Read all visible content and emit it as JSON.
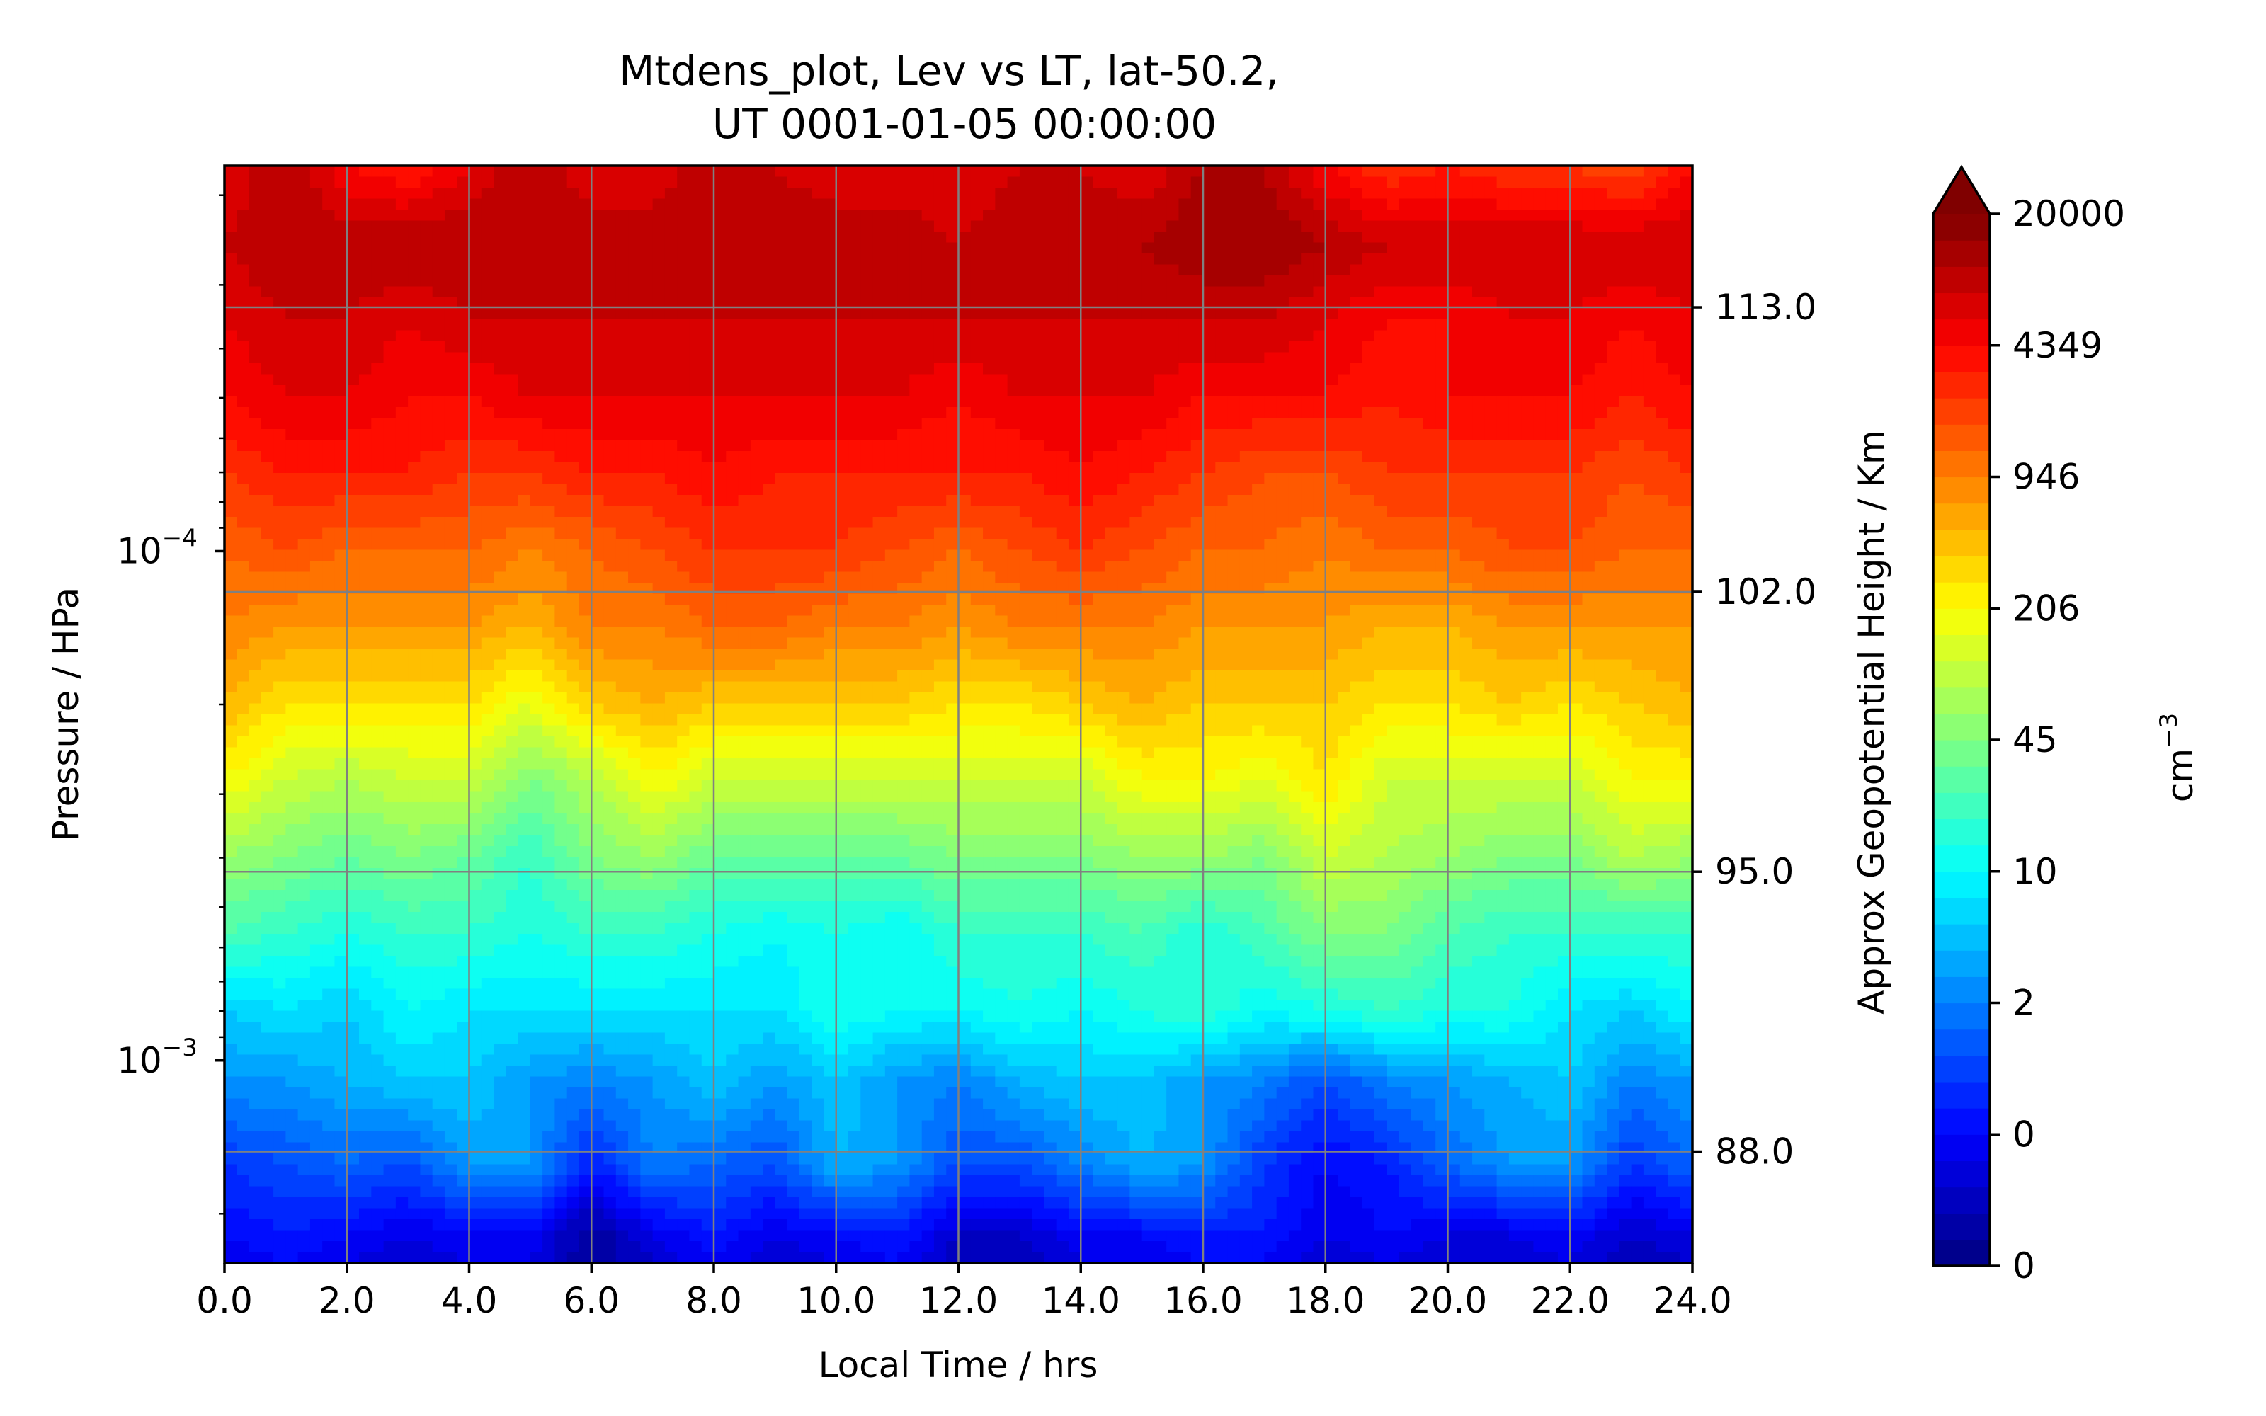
{
  "chart_data": {
    "type": "heatmap",
    "title_line1": "Mtdens_plot, Lev vs LT, lat-50.2,",
    "title_line2": "UT 0001-01-05 00:00:00",
    "xlabel": "Local Time / hrs",
    "ylabel": "Pressure / HPa",
    "y2label": "Approx Geopotential Height / Km",
    "colorbar_label": "cm",
    "colorbar_label_exponent": "−3",
    "xlim": [
      0,
      24
    ],
    "x_ticks": [
      "0.0",
      "2.0",
      "4.0",
      "6.0",
      "8.0",
      "10.0",
      "12.0",
      "14.0",
      "16.0",
      "18.0",
      "20.0",
      "22.0",
      "24.0"
    ],
    "y_scale": "log",
    "ylim_hpa": [
      1.75e-05,
      0.0025
    ],
    "y_major_ticks": [
      {
        "value": 0.0001,
        "mantissa": "10",
        "exponent": "−4"
      },
      {
        "value": 0.001,
        "mantissa": "10",
        "exponent": "−3"
      }
    ],
    "y2_ticks": [
      {
        "label": "113.0",
        "value_hpa": 3.32e-05
      },
      {
        "label": "102.0",
        "value_hpa": 0.0001202
      },
      {
        "label": "95.0",
        "value_hpa": 0.000426
      },
      {
        "label": "88.0",
        "value_hpa": 0.00151
      }
    ],
    "colorbar_ticks": [
      "20000",
      "4349",
      "946",
      "206",
      "45",
      "10",
      "2",
      "0",
      "0"
    ],
    "colorbar_extend": "max",
    "colormap": "jet",
    "grid": true,
    "field_description_units": "cm^-3, log-spaced contour levels",
    "field_time_hr": [
      0,
      1,
      2,
      3,
      4,
      5,
      6,
      7,
      8,
      9,
      10,
      11,
      12,
      13,
      14,
      15,
      16,
      17,
      18,
      19,
      20,
      21,
      22,
      23,
      24
    ],
    "field_pressure_hpa": [
      1.75e-05,
      2.5e-05,
      3.5e-05,
      5e-05,
      7e-05,
      0.0001,
      0.00014,
      0.0002,
      0.00028,
      0.0004,
      0.00056,
      0.0008,
      0.0011,
      0.0016,
      0.0022,
      0.0025
    ],
    "field_level_index": [
      [
        36,
        38,
        35,
        34,
        36,
        38,
        36,
        36,
        38,
        37,
        36,
        36,
        36,
        37,
        37,
        36,
        38,
        38,
        35,
        33,
        34,
        33,
        33,
        32,
        35
      ],
      [
        37,
        38,
        38,
        38,
        38,
        38,
        38,
        38,
        38,
        38,
        38,
        38,
        37,
        38,
        38,
        38,
        39,
        39,
        38,
        37,
        37,
        37,
        37,
        37,
        37
      ],
      [
        36,
        37,
        37,
        36,
        37,
        37,
        37,
        37,
        37,
        37,
        37,
        37,
        37,
        37,
        37,
        37,
        37,
        37,
        36,
        35,
        35,
        36,
        36,
        35,
        36
      ],
      [
        35,
        36,
        36,
        35,
        35,
        36,
        36,
        36,
        36,
        36,
        36,
        36,
        35,
        36,
        36,
        36,
        35,
        35,
        35,
        34,
        35,
        35,
        35,
        34,
        35
      ],
      [
        33,
        34,
        34,
        34,
        33,
        33,
        34,
        34,
        35,
        34,
        34,
        34,
        34,
        34,
        35,
        34,
        33,
        32,
        32,
        33,
        33,
        33,
        33,
        32,
        33
      ],
      [
        31,
        32,
        31,
        31,
        31,
        30,
        31,
        32,
        33,
        33,
        33,
        32,
        31,
        32,
        33,
        32,
        31,
        31,
        30,
        31,
        31,
        32,
        32,
        31,
        31
      ],
      [
        30,
        29,
        29,
        29,
        29,
        28,
        30,
        30,
        31,
        31,
        30,
        30,
        29,
        30,
        30,
        30,
        29,
        29,
        29,
        28,
        28,
        29,
        29,
        29,
        29
      ],
      [
        28,
        26,
        26,
        26,
        26,
        24,
        27,
        28,
        27,
        27,
        27,
        27,
        26,
        26,
        27,
        28,
        27,
        27,
        27,
        26,
        26,
        27,
        26,
        27,
        28
      ],
      [
        25,
        23,
        22,
        23,
        23,
        20,
        22,
        25,
        23,
        23,
        23,
        23,
        23,
        23,
        23,
        25,
        25,
        24,
        26,
        23,
        23,
        23,
        23,
        25,
        25
      ],
      [
        21,
        20,
        19,
        20,
        19,
        17,
        20,
        21,
        19,
        19,
        19,
        19,
        20,
        20,
        20,
        21,
        21,
        20,
        23,
        22,
        21,
        20,
        20,
        22,
        21
      ],
      [
        18,
        17,
        16,
        17,
        17,
        16,
        17,
        17,
        16,
        15,
        16,
        15,
        17,
        17,
        17,
        18,
        16,
        18,
        20,
        20,
        18,
        17,
        17,
        17,
        17
      ],
      [
        13,
        14,
        13,
        15,
        14,
        14,
        14,
        14,
        14,
        14,
        16,
        15,
        15,
        16,
        15,
        16,
        17,
        15,
        16,
        17,
        16,
        16,
        14,
        13,
        15
      ],
      [
        11,
        11,
        12,
        13,
        13,
        11,
        10,
        11,
        13,
        11,
        13,
        11,
        10,
        12,
        13,
        13,
        11,
        10,
        8,
        10,
        11,
        12,
        13,
        10,
        11
      ],
      [
        7,
        8,
        9,
        8,
        11,
        11,
        6,
        10,
        9,
        8,
        12,
        11,
        8,
        8,
        10,
        12,
        11,
        7,
        5,
        6,
        9,
        11,
        11,
        7,
        9
      ],
      [
        5,
        6,
        5,
        4,
        5,
        5,
        1,
        4,
        6,
        4,
        5,
        6,
        3,
        3,
        5,
        5,
        6,
        6,
        4,
        5,
        4,
        4,
        5,
        3,
        4
      ],
      [
        4,
        5,
        4,
        3,
        4,
        4,
        1,
        3,
        5,
        3,
        4,
        5,
        2,
        2,
        4,
        4,
        5,
        5,
        3,
        4,
        3,
        3,
        4,
        2,
        3
      ]
    ]
  }
}
